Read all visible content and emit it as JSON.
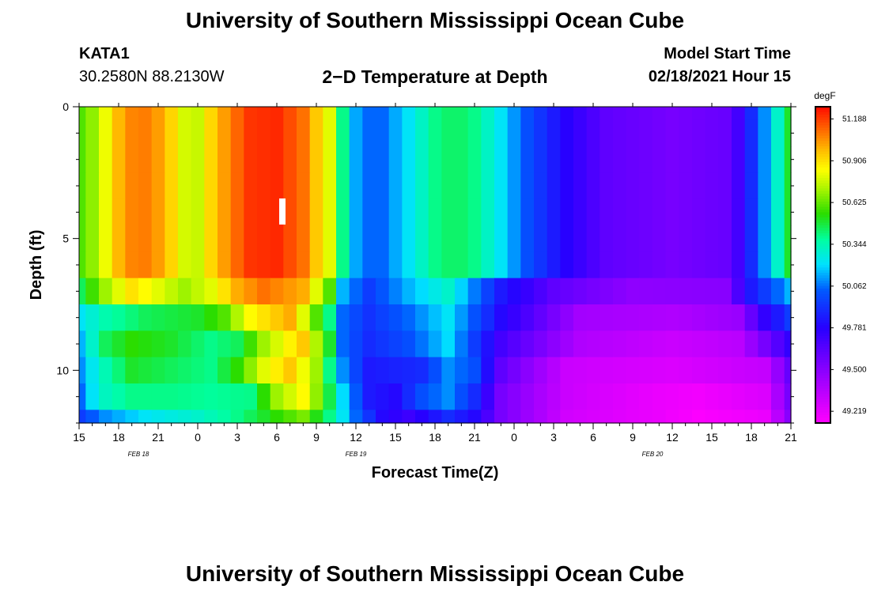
{
  "header": {
    "title": "University of Southern Mississippi Ocean Cube",
    "station_id": "KATA1",
    "coordinates": "30.2580N 88.2130W",
    "plot_title": "2−D Temperature at Depth",
    "model_start_label": "Model Start Time",
    "model_start_value": "02/18/2021 Hour 15"
  },
  "footer": {
    "title": "University of Southern Mississippi Ocean Cube"
  },
  "chart_data": {
    "type": "heatmap",
    "title": "2−D Temperature at Depth",
    "xlabel": "Forecast Time(Z)",
    "ylabel": "Depth (ft)",
    "x_hours_range": [
      0,
      54
    ],
    "y_depth_range": [
      0,
      12
    ],
    "x_tick_labels": [
      "15",
      "18",
      "21",
      "0",
      "3",
      "6",
      "9",
      "12",
      "15",
      "18",
      "21",
      "0",
      "3",
      "6",
      "9",
      "12",
      "15",
      "18",
      "21"
    ],
    "y_tick_labels": [
      "0",
      "5",
      "10"
    ],
    "y_tick_values": [
      0,
      5,
      10
    ],
    "date_labels": [
      {
        "text": "FEB 18",
        "hour": 4.5
      },
      {
        "text": "FEB 19",
        "hour": 21
      },
      {
        "text": "FEB 20",
        "hour": 43.5
      }
    ],
    "colorbar": {
      "unit": "degF",
      "labels": [
        "51.188",
        "50.906",
        "50.625",
        "50.344",
        "50.062",
        "49.781",
        "49.500",
        "49.219"
      ],
      "min": 49.14,
      "max": 51.27
    },
    "depth_levels_ft": [
      0,
      1,
      2,
      3,
      4,
      5,
      6,
      7,
      8,
      9,
      10,
      11,
      12
    ],
    "surface_profile": {
      "hours": [
        0,
        1,
        2,
        3.5,
        5,
        6.5,
        8,
        9,
        10,
        11.5,
        13,
        15,
        17,
        19,
        19.6,
        20,
        20.6,
        21.5,
        23,
        25,
        27,
        28.5,
        30,
        32,
        34,
        37,
        40,
        45,
        49.5,
        51,
        52,
        53,
        54
      ],
      "values": [
        50.6,
        50.68,
        50.82,
        51.06,
        51.08,
        51.0,
        50.78,
        50.76,
        50.92,
        51.08,
        51.2,
        51.22,
        51.1,
        50.8,
        50.6,
        50.4,
        50.2,
        50.05,
        50.05,
        50.22,
        50.4,
        50.45,
        50.4,
        50.22,
        50.0,
        49.78,
        49.62,
        49.55,
        49.6,
        49.9,
        50.1,
        50.3,
        50.5
      ]
    },
    "layer_profiles": [
      {
        "depth_ft": 7,
        "hours": [
          0,
          2,
          4,
          6,
          8,
          10,
          12,
          14,
          17,
          19,
          20,
          22,
          25,
          28,
          32,
          36,
          42,
          49,
          51,
          54
        ],
        "values": [
          50.45,
          50.7,
          50.9,
          50.8,
          50.7,
          50.8,
          51.0,
          51.1,
          51.0,
          50.6,
          50.15,
          49.95,
          50.15,
          50.3,
          49.85,
          49.62,
          49.48,
          49.5,
          49.85,
          50.15
        ]
      },
      {
        "depth_ft": 8,
        "hours": [
          0,
          2,
          5,
          9,
          11,
          13,
          16,
          19,
          20,
          22,
          25,
          28,
          32,
          38,
          45,
          50,
          52,
          54
        ],
        "values": [
          50.22,
          50.35,
          50.45,
          50.5,
          50.6,
          50.85,
          51.0,
          50.4,
          50.05,
          49.92,
          50.05,
          50.22,
          49.8,
          49.42,
          49.38,
          49.45,
          49.75,
          49.95
        ]
      },
      {
        "depth_ft": 9,
        "hours": [
          0,
          2,
          4,
          7,
          10,
          12,
          14,
          17,
          19,
          20,
          22,
          25,
          28,
          32,
          38,
          45,
          50,
          54
        ],
        "values": [
          50.15,
          50.45,
          50.55,
          50.5,
          50.4,
          50.45,
          50.7,
          50.95,
          50.5,
          50.05,
          49.9,
          50.0,
          50.2,
          49.7,
          49.38,
          49.3,
          49.35,
          49.75
        ]
      },
      {
        "depth_ft": 10,
        "hours": [
          0,
          1.5,
          4,
          7,
          10,
          12,
          14,
          16,
          18,
          19,
          20,
          22,
          26,
          28,
          30,
          32,
          37,
          45,
          52,
          54
        ],
        "values": [
          50.1,
          50.3,
          50.5,
          50.45,
          50.4,
          50.55,
          50.8,
          50.95,
          50.7,
          50.4,
          50.1,
          49.85,
          49.9,
          50.1,
          50.0,
          49.62,
          49.3,
          49.25,
          49.32,
          49.6
        ]
      },
      {
        "depth_ft": 11,
        "hours": [
          0,
          1.5,
          4,
          7,
          10,
          13,
          15,
          17,
          18.5,
          20,
          22,
          24,
          26,
          28,
          30,
          32,
          37,
          44,
          47,
          52,
          54
        ],
        "values": [
          50.05,
          50.3,
          50.4,
          50.4,
          50.38,
          50.4,
          50.7,
          50.85,
          50.6,
          50.2,
          49.85,
          49.8,
          50.0,
          50.1,
          49.9,
          49.55,
          49.3,
          49.2,
          49.18,
          49.25,
          49.55
        ]
      },
      {
        "depth_ft": 12,
        "hours": [
          0,
          2,
          5,
          9,
          12,
          15,
          17,
          19,
          21,
          23,
          25,
          28,
          30,
          32,
          37,
          44,
          47,
          52,
          54
        ],
        "values": [
          49.95,
          50.1,
          50.22,
          50.3,
          50.4,
          50.55,
          50.65,
          50.4,
          50.05,
          49.8,
          49.72,
          49.9,
          49.8,
          49.55,
          49.28,
          49.2,
          49.15,
          49.2,
          49.5
        ]
      }
    ]
  }
}
